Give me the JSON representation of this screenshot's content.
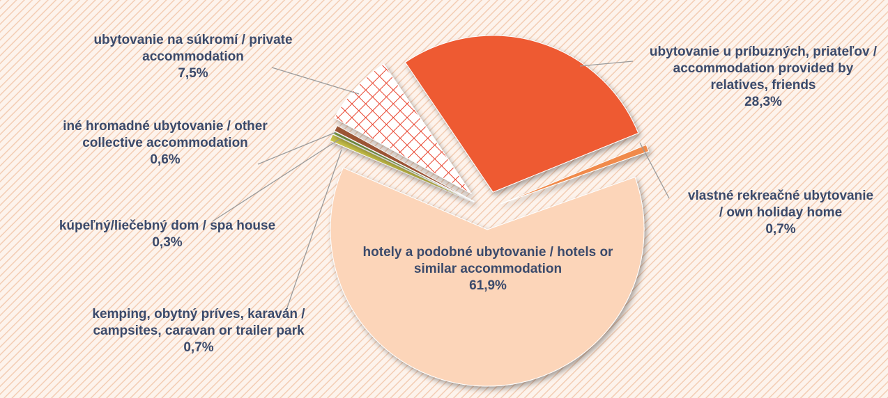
{
  "chart_data": {
    "type": "pie",
    "categories": [
      "ubytovanie u príbuzných, priateľov / accommodation provided by relatives, friends",
      "vlastné rekreačné ubytovanie / own holiday home",
      "hotely a podobné ubytovanie / hotels or similar accommodation",
      "kemping, obytný príves, karaván / campsites, caravan or trailer park",
      "kúpeľný/liečebný dom / spa house",
      "iné hromadné ubytovanie / other collective accommodation",
      "ubytovanie na súkromí / private accommodation"
    ],
    "values": [
      28.3,
      0.7,
      61.9,
      0.7,
      0.3,
      0.6,
      7.5
    ],
    "value_labels": [
      "28,3%",
      "0,7%",
      "61,9%",
      "0,7%",
      "0,3%",
      "0,6%",
      "7,5%"
    ],
    "colors": [
      "#ee5a33",
      "#f08a4b",
      "#fcd5b9",
      "#c9c24a",
      "#7fa24a",
      "#9c5434",
      "#e8402a"
    ],
    "patterns": [
      null,
      null,
      null,
      null,
      null,
      null,
      "crosshatch"
    ]
  }
}
